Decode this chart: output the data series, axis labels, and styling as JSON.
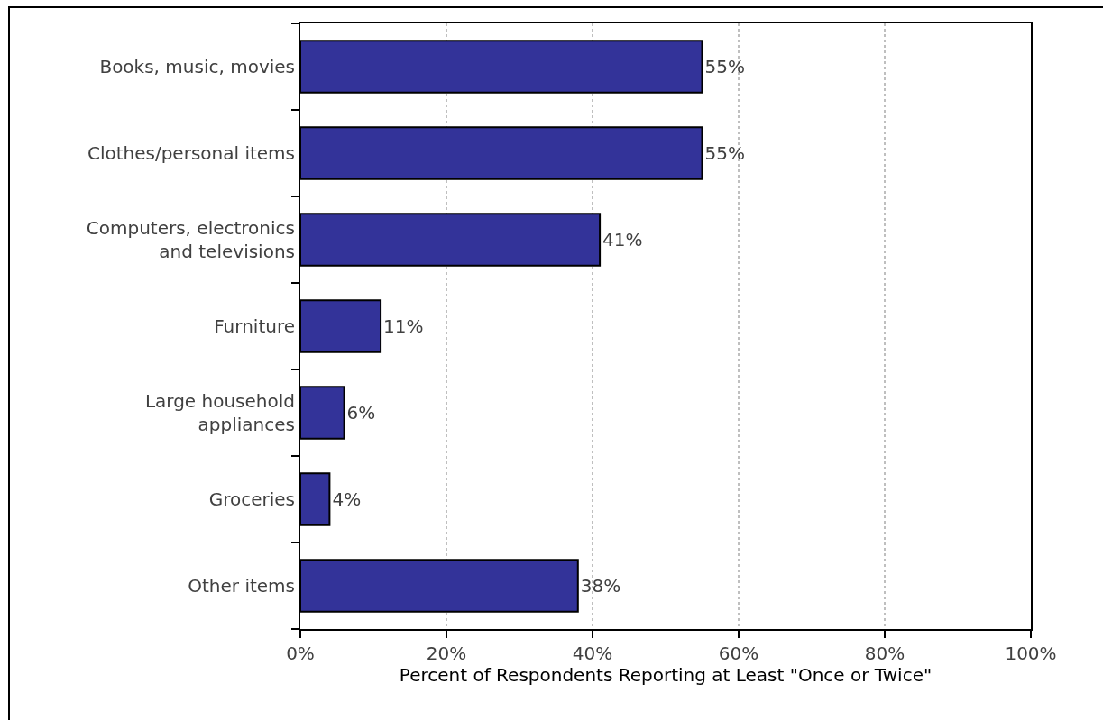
{
  "chart_data": {
    "type": "bar",
    "orientation": "horizontal",
    "categories": [
      "Books, music, movies",
      "Clothes/personal items",
      "Computers, electronics and televisions",
      "Furniture",
      "Large household appliances",
      "Groceries",
      "Other items"
    ],
    "values": [
      55,
      55,
      41,
      11,
      6,
      4,
      38
    ],
    "value_labels": [
      "55%",
      "55%",
      "41%",
      "11%",
      "6%",
      "4%",
      "38%"
    ],
    "color": "#333399",
    "xlim": [
      0,
      100
    ],
    "xticks": [
      {
        "value": 0,
        "label": "0%"
      },
      {
        "value": 20,
        "label": "20%"
      },
      {
        "value": 40,
        "label": "40%"
      },
      {
        "value": 60,
        "label": "60%"
      },
      {
        "value": 80,
        "label": "80%"
      },
      {
        "value": 100,
        "label": "100%"
      }
    ],
    "xlabel": "Percent of Respondents Reporting at Least \"Once or Twice\"",
    "grid": "x"
  }
}
